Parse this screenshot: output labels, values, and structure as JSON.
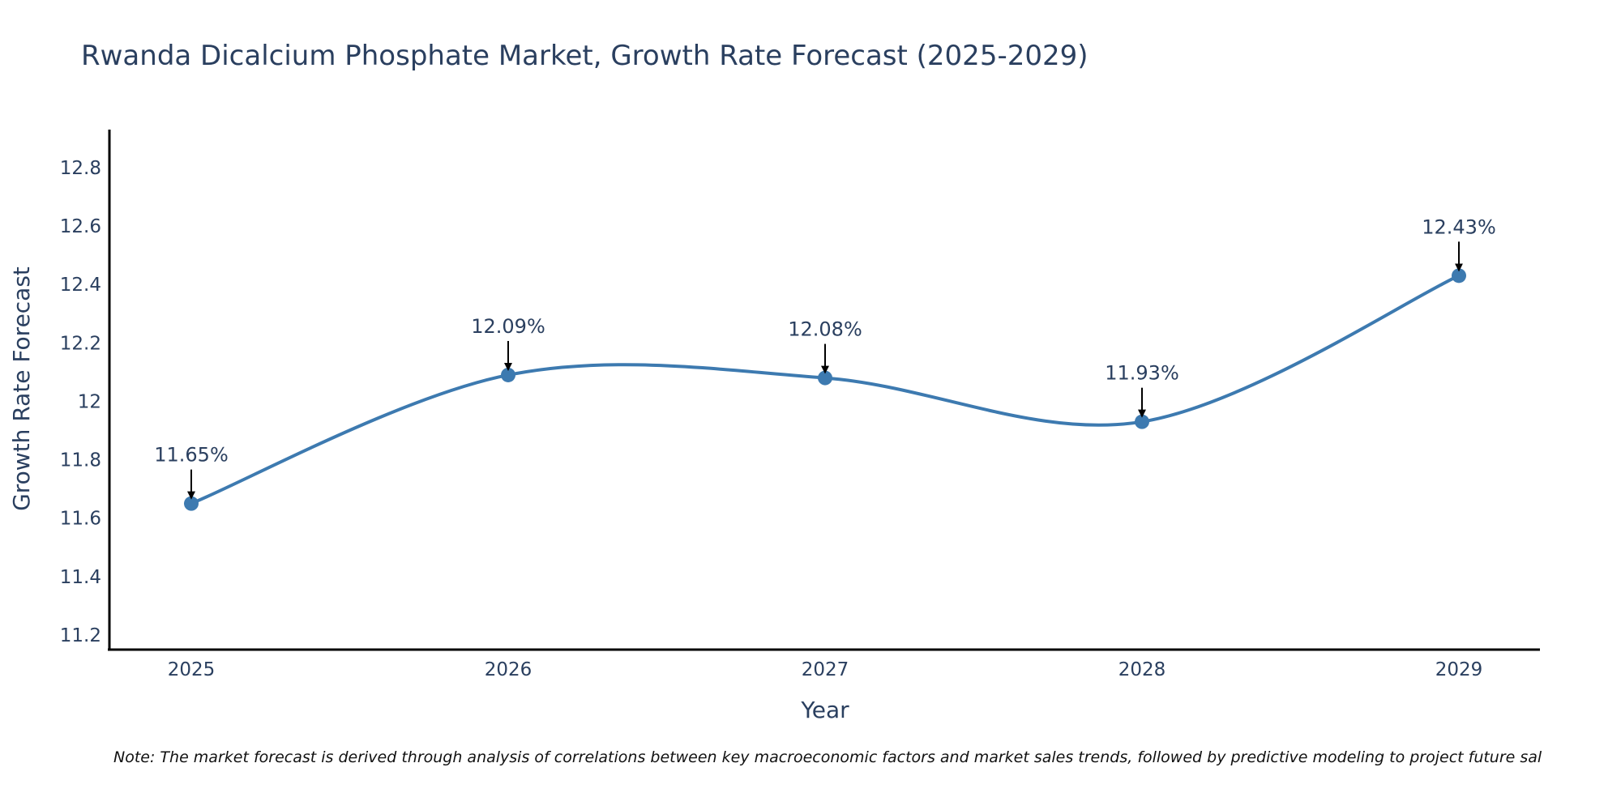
{
  "chart_data": {
    "type": "line",
    "title": "Rwanda Dicalcium Phosphate Market, Growth Rate Forecast (2025-2029)",
    "xlabel": "Year",
    "ylabel": "Growth Rate Forecast",
    "categories": [
      "2025",
      "2026",
      "2027",
      "2028",
      "2029"
    ],
    "series": [
      {
        "name": "Growth Rate Forecast",
        "values": [
          11.65,
          12.09,
          12.08,
          11.93,
          12.43
        ],
        "color": "#3d7ab0"
      }
    ],
    "data_labels": [
      "11.65%",
      "12.09%",
      "12.08%",
      "11.93%",
      "12.43%"
    ],
    "ylim": [
      11.15,
      12.93
    ],
    "yticks": [
      11.2,
      11.4,
      11.6,
      11.8,
      12,
      12.2,
      12.4,
      12.6,
      12.8
    ],
    "ytick_labels": [
      "11.2",
      "11.4",
      "11.6",
      "11.8",
      "12",
      "12.2",
      "12.4",
      "12.6",
      "12.8"
    ],
    "grid": false,
    "line_shape": "spline",
    "note": "Note: The market forecast is derived through analysis of correlations between key macroeconomic factors and market sales trends, followed by predictive modeling to project future sal"
  }
}
